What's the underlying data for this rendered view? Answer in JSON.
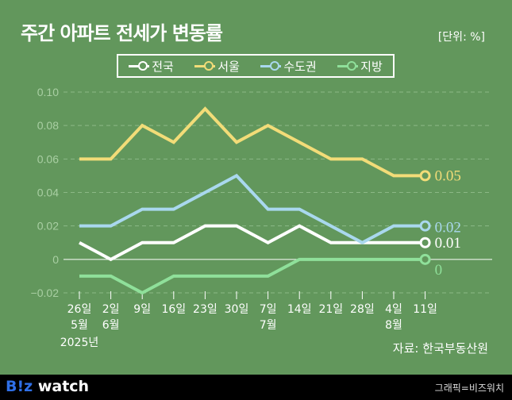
{
  "header": {
    "title": "주간 아파트 전세가 변동률",
    "unit": "[단위: %]"
  },
  "source": "자료: 한국부동산원",
  "footer": {
    "logo": "B!z watch",
    "logo_b": "B!z",
    "logo_rest": " watch",
    "credit": "그래픽=비즈워치"
  },
  "chart_data": {
    "type": "line",
    "title": "주간 아파트 전세가 변동률",
    "categories": [
      "26일",
      "2일",
      "9일",
      "16일",
      "23일",
      "30일",
      "7일",
      "14일",
      "21일",
      "28일",
      "4일",
      "11일"
    ],
    "month_labels": [
      {
        "index": 0,
        "text": "5월"
      },
      {
        "index": 1,
        "text": "6월"
      },
      {
        "index": 6,
        "text": "7월"
      },
      {
        "index": 10,
        "text": "8월"
      }
    ],
    "year_label": "2025년",
    "ylim": [
      -0.02,
      0.1
    ],
    "yticks": [
      "0.10",
      "0.08",
      "0.06",
      "0.04",
      "0.02",
      "0",
      "−0.02"
    ],
    "ytick_values": [
      0.1,
      0.08,
      0.06,
      0.04,
      0.02,
      0,
      -0.02
    ],
    "grid": true,
    "legend_position": "top",
    "series": [
      {
        "name": "전국",
        "color": "#ffffff",
        "values": [
          0.01,
          0,
          0.01,
          0.01,
          0.02,
          0.02,
          0.01,
          0.02,
          0.01,
          0.01,
          0.01,
          0.01
        ],
        "end_label": "0.01"
      },
      {
        "name": "서울",
        "color": "#f2dc78",
        "values": [
          0.06,
          0.06,
          0.08,
          0.07,
          0.09,
          0.07,
          0.08,
          0.07,
          0.06,
          0.06,
          0.05,
          0.05
        ],
        "end_label": "0.05"
      },
      {
        "name": "수도권",
        "color": "#a9d8ee",
        "values": [
          0.02,
          0.02,
          0.03,
          0.03,
          0.04,
          0.05,
          0.03,
          0.03,
          0.02,
          0.01,
          0.02,
          0.02
        ],
        "end_label": "0.02"
      },
      {
        "name": "지방",
        "color": "#8fe09a",
        "values": [
          -0.01,
          -0.01,
          -0.02,
          -0.01,
          -0.01,
          -0.01,
          -0.01,
          0,
          0,
          0,
          0,
          0
        ],
        "end_label": "0"
      }
    ]
  }
}
